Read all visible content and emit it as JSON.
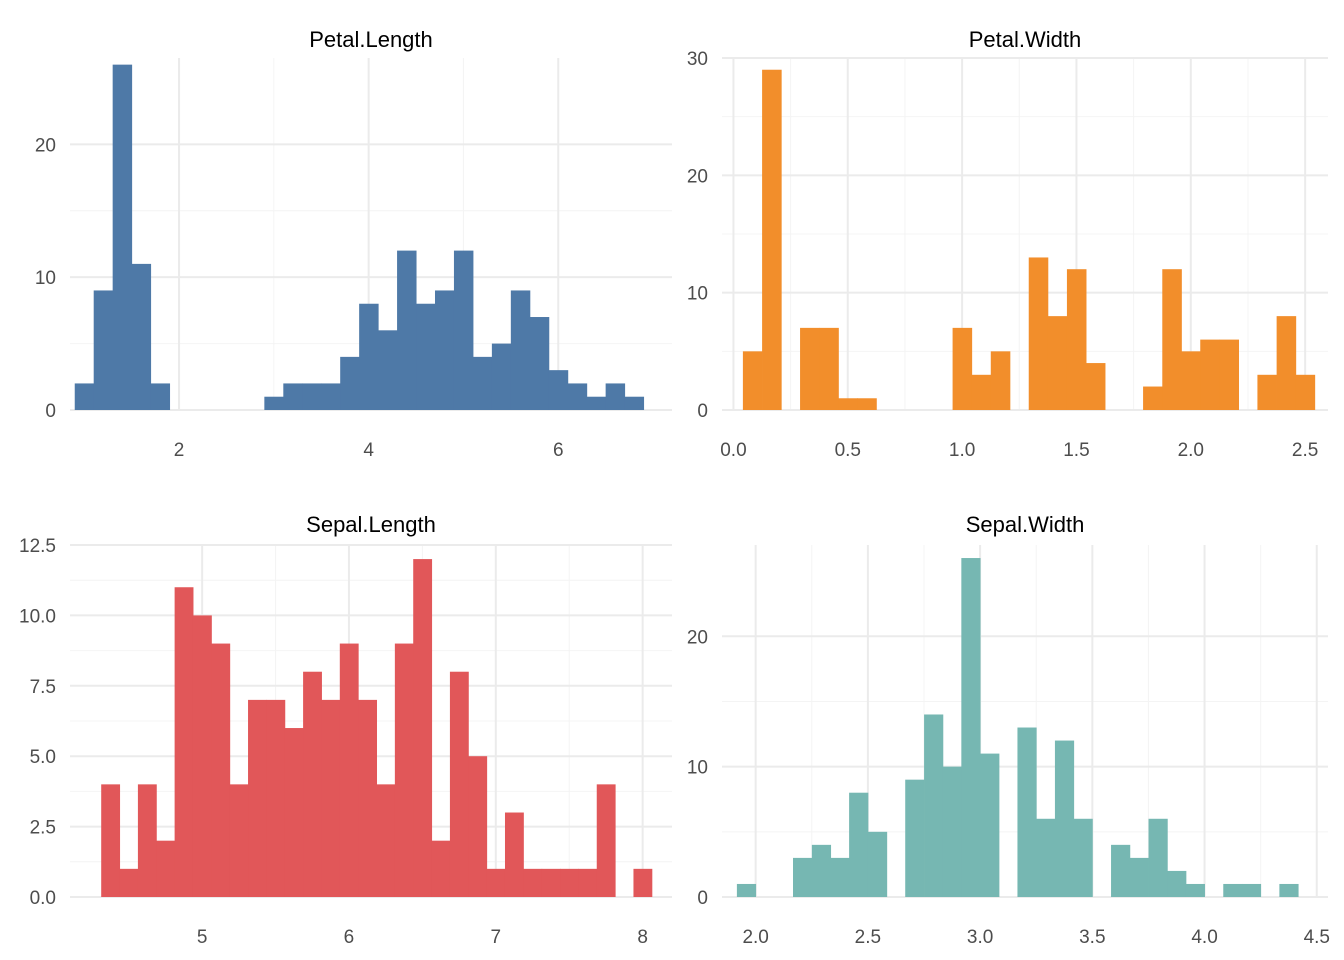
{
  "chart_data": [
    {
      "type": "bar",
      "title": "Petal.Length",
      "color": "#4e79a7",
      "bin_width": 0.2,
      "bins_x": [
        1.0,
        1.2,
        1.4,
        1.6,
        1.8,
        3.0,
        3.2,
        3.4,
        3.6,
        3.8,
        4.0,
        4.2,
        4.4,
        4.6,
        4.8,
        5.0,
        5.2,
        5.4,
        5.6,
        5.8,
        6.0,
        6.2,
        6.4,
        6.6,
        6.8,
        7.0
      ],
      "counts": [
        2,
        9,
        26,
        11,
        2,
        1,
        2,
        2,
        2,
        4,
        8,
        6,
        12,
        8,
        9,
        12,
        4,
        5,
        9,
        7,
        3,
        2,
        1,
        2,
        1,
        0
      ],
      "xlim": [
        0.85,
        7.2
      ],
      "ylim": [
        0,
        26.5
      ],
      "x_ticks": [
        2,
        4,
        6
      ],
      "x_tick_labels": [
        "2",
        "4",
        "6"
      ],
      "y_ticks": [
        0,
        10,
        20
      ],
      "y_tick_labels": [
        "0",
        "10",
        "20"
      ]
    },
    {
      "type": "bar",
      "title": "Petal.Width",
      "color": "#f28e2b",
      "bin_width": 0.0833,
      "bins_x": [
        0.083,
        0.167,
        0.333,
        0.417,
        0.5,
        0.583,
        1.0,
        1.083,
        1.167,
        1.333,
        1.417,
        1.5,
        1.583,
        1.833,
        1.917,
        2.0,
        2.083,
        2.167,
        2.333,
        2.417,
        2.5
      ],
      "counts": [
        5,
        29,
        7,
        7,
        1,
        1,
        7,
        3,
        5,
        13,
        8,
        12,
        4,
        2,
        12,
        5,
        6,
        6,
        3,
        8,
        3
      ],
      "xlim": [
        -0.05,
        2.6
      ],
      "ylim": [
        0,
        30
      ],
      "x_ticks": [
        0.0,
        0.5,
        1.0,
        1.5,
        2.0,
        2.5
      ],
      "x_tick_labels": [
        "0.0",
        "0.5",
        "1.0",
        "1.5",
        "2.0",
        "2.5"
      ],
      "y_ticks": [
        0,
        10,
        20,
        30
      ],
      "y_tick_labels": [
        "0",
        "10",
        "20",
        "30"
      ]
    },
    {
      "type": "bar",
      "title": "Sepal.Length",
      "color": "#e15759",
      "bin_width": 0.125,
      "bins_x": [
        4.375,
        4.5,
        4.625,
        4.75,
        4.875,
        5.0,
        5.125,
        5.25,
        5.375,
        5.5,
        5.625,
        5.75,
        5.875,
        6.0,
        6.125,
        6.25,
        6.375,
        6.5,
        6.625,
        6.75,
        6.875,
        7.0,
        7.125,
        7.25,
        7.375,
        7.5,
        7.625,
        7.75,
        7.875,
        8.0
      ],
      "counts": [
        4,
        1,
        4,
        2,
        11,
        10,
        9,
        4,
        7,
        7,
        6,
        8,
        7,
        9,
        7,
        4,
        9,
        12,
        2,
        8,
        5,
        1,
        3,
        1,
        1,
        1,
        1,
        4,
        0,
        1
      ],
      "xlim": [
        4.1,
        8.2
      ],
      "ylim": [
        0,
        12.5
      ],
      "x_ticks": [
        5,
        6,
        7,
        8
      ],
      "x_tick_labels": [
        "5",
        "6",
        "7",
        "8"
      ],
      "y_ticks": [
        0.0,
        2.5,
        5.0,
        7.5,
        10.0,
        12.5
      ],
      "y_tick_labels": [
        "0.0",
        "2.5",
        "5.0",
        "7.5",
        "10.0",
        "12.5"
      ]
    },
    {
      "type": "bar",
      "title": "Sepal.Width",
      "color": "#76b7b2",
      "bin_width": 0.0833,
      "bins_x": [
        1.958,
        2.208,
        2.292,
        2.375,
        2.458,
        2.542,
        2.708,
        2.792,
        2.875,
        2.958,
        3.042,
        3.208,
        3.292,
        3.375,
        3.458,
        3.625,
        3.708,
        3.792,
        3.875,
        3.958,
        4.125,
        4.208,
        4.375
      ],
      "counts": [
        1,
        3,
        4,
        3,
        8,
        5,
        9,
        14,
        10,
        26,
        11,
        13,
        6,
        12,
        6,
        4,
        3,
        6,
        2,
        1,
        1,
        1,
        1
      ],
      "xlim": [
        1.85,
        4.55
      ],
      "ylim": [
        0,
        27
      ],
      "x_ticks": [
        2.0,
        2.5,
        3.0,
        3.5,
        4.0,
        4.5
      ],
      "x_tick_labels": [
        "2.0",
        "2.5",
        "3.0",
        "3.5",
        "4.0",
        "4.5"
      ],
      "y_ticks": [
        0,
        10,
        20
      ],
      "y_tick_labels": [
        "0",
        "10",
        "20"
      ]
    }
  ]
}
